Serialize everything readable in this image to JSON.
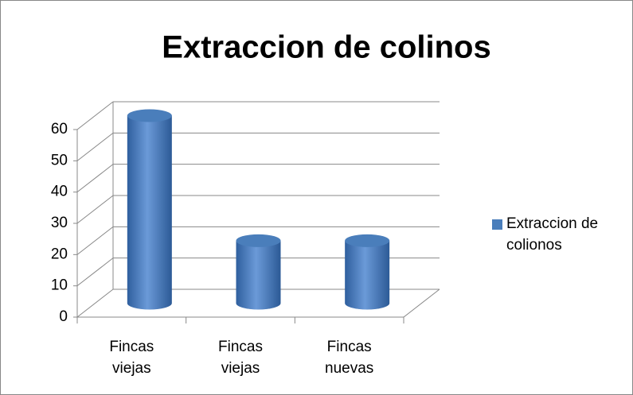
{
  "chart_data": {
    "type": "bar",
    "title": "Extraccion de colinos",
    "categories": [
      "Fincas viejas",
      "Fincas viejas",
      "Fincas nuevas"
    ],
    "series": [
      {
        "name": "Extraccion de colionos",
        "color": "#4a7ebb",
        "values": [
          60,
          20,
          20
        ]
      }
    ],
    "ylim": [
      0,
      60
    ],
    "yticks": [
      0,
      10,
      20,
      30,
      40,
      50,
      60
    ],
    "grid": true,
    "legend": "right"
  }
}
